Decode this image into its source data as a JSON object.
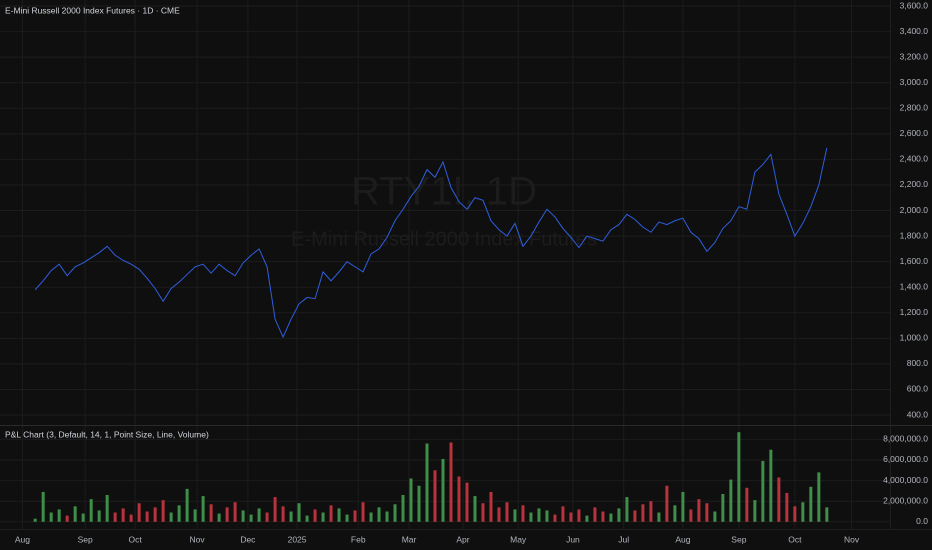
{
  "chart_data": [
    {
      "type": "line",
      "title": "E-Mini Russell 2000 Index Futures · 1D · CME",
      "watermark_symbol": "RTY1!, 1D",
      "watermark_name": "E-Mini Russell 2000 Index Futures",
      "color": "#2f5fe0",
      "values": [
        1380,
        1450,
        1530,
        1580,
        1490,
        1560,
        1590,
        1630,
        1670,
        1720,
        1650,
        1610,
        1580,
        1540,
        1470,
        1390,
        1290,
        1390,
        1440,
        1500,
        1560,
        1580,
        1510,
        1580,
        1530,
        1490,
        1590,
        1650,
        1700,
        1560,
        1150,
        1010,
        1150,
        1270,
        1320,
        1310,
        1520,
        1450,
        1520,
        1600,
        1560,
        1520,
        1660,
        1700,
        1790,
        1920,
        2010,
        2110,
        2190,
        2320,
        2260,
        2380,
        2180,
        2070,
        2010,
        2100,
        2080,
        1920,
        1850,
        1800,
        1900,
        1720,
        1800,
        1910,
        2010,
        1950,
        1860,
        1790,
        1710,
        1800,
        1780,
        1760,
        1850,
        1890,
        1970,
        1930,
        1870,
        1830,
        1910,
        1890,
        1920,
        1940,
        1830,
        1780,
        1680,
        1750,
        1860,
        1920,
        2030,
        2010,
        2300,
        2360,
        2440,
        2130,
        1970,
        1800,
        1900,
        2030,
        2200,
        2490
      ],
      "xlim": [
        -4.4,
        106.9
      ],
      "xticks": [
        {
          "value": -1.6,
          "label": "Aug"
        },
        {
          "value": 6.25,
          "label": "Sep"
        },
        {
          "value": 12.5,
          "label": "Oct"
        },
        {
          "value": 20.25,
          "label": "Nov"
        },
        {
          "value": 26.6,
          "label": "Dec"
        },
        {
          "value": 32.75,
          "label": "2025"
        },
        {
          "value": 40.4,
          "label": "Feb"
        },
        {
          "value": 46.75,
          "label": "Mar"
        },
        {
          "value": 53.5,
          "label": "Apr"
        },
        {
          "value": 60.4,
          "label": "May"
        },
        {
          "value": 67.25,
          "label": "Jun"
        },
        {
          "value": 73.6,
          "label": "Jul"
        },
        {
          "value": 81,
          "label": "Aug"
        },
        {
          "value": 88,
          "label": "Sep"
        },
        {
          "value": 95,
          "label": "Oct"
        },
        {
          "value": 102.1,
          "label": "Nov"
        }
      ],
      "ylim": [
        322,
        3647
      ],
      "yticks": [
        {
          "value": 400,
          "label": "400.0"
        },
        {
          "value": 600,
          "label": "600.0"
        },
        {
          "value": 800,
          "label": "800.0"
        },
        {
          "value": 1000,
          "label": "1,000.0"
        },
        {
          "value": 1200,
          "label": "1,200.0"
        },
        {
          "value": 1400,
          "label": "1,400.0"
        },
        {
          "value": 1600,
          "label": "1,600.0"
        },
        {
          "value": 1800,
          "label": "1,800.0"
        },
        {
          "value": 2000,
          "label": "2,000.0"
        },
        {
          "value": 2200,
          "label": "2,200.0"
        },
        {
          "value": 2400,
          "label": "2,400.0"
        },
        {
          "value": 2600,
          "label": "2,600.0"
        },
        {
          "value": 2800,
          "label": "2,800.0"
        },
        {
          "value": 3000,
          "label": "3,000.0"
        },
        {
          "value": 3200,
          "label": "3,200.0"
        },
        {
          "value": 3400,
          "label": "3,400.0"
        },
        {
          "value": 3600,
          "label": "3,600.0"
        }
      ],
      "grid": true
    },
    {
      "type": "bar",
      "title": "P&L Chart (3, Default, 14, 1, Point Size, Line, Volume)",
      "up_color": "#3f8f4a",
      "down_color": "#b8333c",
      "values": [
        300000,
        2900000,
        900000,
        1200000,
        600000,
        1500000,
        800000,
        2200000,
        1100000,
        2600000,
        900000,
        1300000,
        700000,
        1800000,
        1000000,
        1400000,
        2100000,
        900000,
        1600000,
        3200000,
        1200000,
        2500000,
        1700000,
        800000,
        1400000,
        1900000,
        1100000,
        700000,
        1300000,
        900000,
        2400000,
        1500000,
        1000000,
        1800000,
        600000,
        1200000,
        900000,
        1600000,
        1300000,
        700000,
        1100000,
        1900000,
        900000,
        1400000,
        1000000,
        1700000,
        2600000,
        4200000,
        3500000,
        7600000,
        5000000,
        6100000,
        7700000,
        4400000,
        3800000,
        2500000,
        1800000,
        2900000,
        1400000,
        1900000,
        1200000,
        1600000,
        900000,
        1300000,
        1100000,
        700000,
        1500000,
        900000,
        1200000,
        600000,
        1400000,
        1000000,
        800000,
        1300000,
        2400000,
        1100000,
        1700000,
        2000000,
        900000,
        3500000,
        1600000,
        2900000,
        1200000,
        2200000,
        1800000,
        1000000,
        2700000,
        4100000,
        8700000,
        3300000,
        2100000,
        5900000,
        7000000,
        4300000,
        2800000,
        1500000,
        1900000,
        3400000,
        4800000,
        1400000
      ],
      "ylim": [
        -700000,
        9300000
      ],
      "yticks": [
        {
          "value": 0,
          "label": "0.0"
        },
        {
          "value": 2000000,
          "label": "2,000,000.0"
        },
        {
          "value": 4000000,
          "label": "4,000,000.0"
        },
        {
          "value": 6000000,
          "label": "6,000,000.0"
        },
        {
          "value": 8000000,
          "label": "8,000,000.0"
        }
      ],
      "grid": true
    }
  ]
}
